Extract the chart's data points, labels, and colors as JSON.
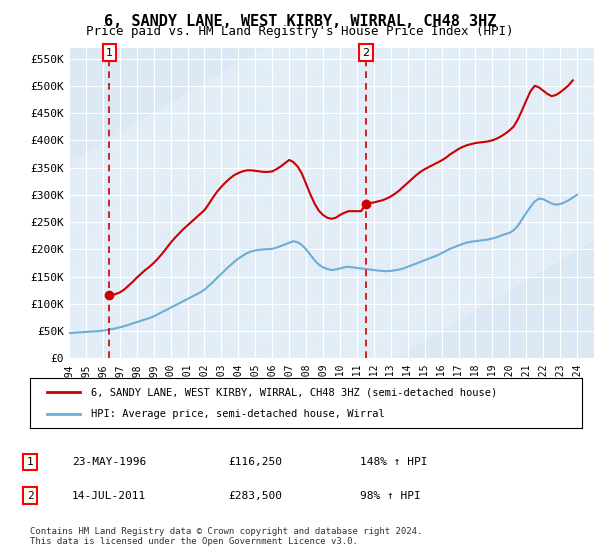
{
  "title": "6, SANDY LANE, WEST KIRBY, WIRRAL, CH48 3HZ",
  "subtitle": "Price paid vs. HM Land Registry's House Price Index (HPI)",
  "ylim": [
    0,
    570000
  ],
  "yticks": [
    0,
    50000,
    100000,
    150000,
    200000,
    250000,
    300000,
    350000,
    400000,
    450000,
    500000,
    550000
  ],
  "ytick_labels": [
    "£0",
    "£50K",
    "£100K",
    "£150K",
    "£200K",
    "£250K",
    "£300K",
    "£350K",
    "£400K",
    "£450K",
    "£500K",
    "£550K"
  ],
  "xlim_start": 1994.0,
  "xlim_end": 2025.0,
  "xticks": [
    1994,
    1995,
    1996,
    1997,
    1998,
    1999,
    2000,
    2001,
    2002,
    2003,
    2004,
    2005,
    2006,
    2007,
    2008,
    2009,
    2010,
    2011,
    2012,
    2013,
    2014,
    2015,
    2016,
    2017,
    2018,
    2019,
    2020,
    2021,
    2022,
    2023,
    2024
  ],
  "sale1_x": 1996.388,
  "sale1_y": 116250,
  "sale1_label": "1",
  "sale2_x": 2011.536,
  "sale2_y": 283500,
  "sale2_label": "2",
  "hpi_color": "#6baed6",
  "price_color": "#cc0000",
  "dashed_color": "#cc0000",
  "bg_color": "#dce9f5",
  "legend_address": "6, SANDY LANE, WEST KIRBY, WIRRAL, CH48 3HZ (semi-detached house)",
  "legend_hpi": "HPI: Average price, semi-detached house, Wirral",
  "table_row1": [
    "1",
    "23-MAY-1996",
    "£116,250",
    "148% ↑ HPI"
  ],
  "table_row2": [
    "2",
    "14-JUL-2011",
    "£283,500",
    "98% ↑ HPI"
  ],
  "footer": "Contains HM Land Registry data © Crown copyright and database right 2024.\nThis data is licensed under the Open Government Licence v3.0.",
  "hpi_data_x": [
    1994.0,
    1994.25,
    1994.5,
    1994.75,
    1995.0,
    1995.25,
    1995.5,
    1995.75,
    1996.0,
    1996.25,
    1996.5,
    1996.75,
    1997.0,
    1997.25,
    1997.5,
    1997.75,
    1998.0,
    1998.25,
    1998.5,
    1998.75,
    1999.0,
    1999.25,
    1999.5,
    1999.75,
    2000.0,
    2000.25,
    2000.5,
    2000.75,
    2001.0,
    2001.25,
    2001.5,
    2001.75,
    2002.0,
    2002.25,
    2002.5,
    2002.75,
    2003.0,
    2003.25,
    2003.5,
    2003.75,
    2004.0,
    2004.25,
    2004.5,
    2004.75,
    2005.0,
    2005.25,
    2005.5,
    2005.75,
    2006.0,
    2006.25,
    2006.5,
    2006.75,
    2007.0,
    2007.25,
    2007.5,
    2007.75,
    2008.0,
    2008.25,
    2008.5,
    2008.75,
    2009.0,
    2009.25,
    2009.5,
    2009.75,
    2010.0,
    2010.25,
    2010.5,
    2010.75,
    2011.0,
    2011.25,
    2011.5,
    2011.75,
    2012.0,
    2012.25,
    2012.5,
    2012.75,
    2013.0,
    2013.25,
    2013.5,
    2013.75,
    2014.0,
    2014.25,
    2014.5,
    2014.75,
    2015.0,
    2015.25,
    2015.5,
    2015.75,
    2016.0,
    2016.25,
    2016.5,
    2016.75,
    2017.0,
    2017.25,
    2017.5,
    2017.75,
    2018.0,
    2018.25,
    2018.5,
    2018.75,
    2019.0,
    2019.25,
    2019.5,
    2019.75,
    2020.0,
    2020.25,
    2020.5,
    2020.75,
    2021.0,
    2021.25,
    2021.5,
    2021.75,
    2022.0,
    2022.25,
    2022.5,
    2022.75,
    2023.0,
    2023.25,
    2023.5,
    2023.75,
    2024.0
  ],
  "hpi_data_y": [
    46500,
    47000,
    47500,
    48000,
    48500,
    49000,
    49500,
    50000,
    51000,
    52000,
    53500,
    55000,
    57000,
    59000,
    61500,
    64000,
    66500,
    69000,
    71500,
    74000,
    77000,
    81000,
    85000,
    89000,
    93000,
    97000,
    101000,
    105000,
    109000,
    113000,
    117000,
    121000,
    126000,
    133000,
    140000,
    148000,
    155000,
    163000,
    170000,
    177000,
    183000,
    188000,
    193000,
    196000,
    198000,
    199000,
    200000,
    200500,
    201000,
    203000,
    206000,
    209000,
    212000,
    215000,
    213000,
    208000,
    200000,
    190000,
    180000,
    172000,
    167000,
    164000,
    162000,
    163000,
    165000,
    167000,
    168000,
    167000,
    166000,
    165000,
    164000,
    163000,
    162000,
    161000,
    160500,
    160000,
    160500,
    161500,
    163000,
    165000,
    168000,
    171000,
    174000,
    177000,
    180000,
    183000,
    186000,
    189000,
    193000,
    197000,
    201000,
    204000,
    207000,
    210000,
    212500,
    214000,
    215000,
    216000,
    217000,
    218000,
    220000,
    222000,
    225000,
    228000,
    230000,
    235000,
    243000,
    255000,
    267000,
    278000,
    288000,
    293000,
    292000,
    288000,
    284000,
    282000,
    283000,
    286000,
    290000,
    295000,
    300000
  ],
  "price_data_x": [
    1994.0,
    1994.25,
    1994.5,
    1994.75,
    1995.0,
    1995.25,
    1995.5,
    1995.75,
    1996.0,
    1996.25,
    1996.388,
    1996.5,
    1996.75,
    1997.0,
    1997.25,
    1997.5,
    1997.75,
    1998.0,
    1998.25,
    1998.5,
    1998.75,
    1999.0,
    1999.25,
    1999.5,
    1999.75,
    2000.0,
    2000.25,
    2000.5,
    2000.75,
    2001.0,
    2001.25,
    2001.5,
    2001.75,
    2002.0,
    2002.25,
    2002.5,
    2002.75,
    2003.0,
    2003.25,
    2003.5,
    2003.75,
    2004.0,
    2004.25,
    2004.5,
    2004.75,
    2005.0,
    2005.25,
    2005.5,
    2005.75,
    2006.0,
    2006.25,
    2006.5,
    2006.75,
    2007.0,
    2007.25,
    2007.5,
    2007.75,
    2008.0,
    2008.25,
    2008.5,
    2008.75,
    2009.0,
    2009.25,
    2009.5,
    2009.75,
    2010.0,
    2010.25,
    2010.5,
    2010.75,
    2011.0,
    2011.25,
    2011.536,
    2011.75,
    2012.0,
    2012.25,
    2012.5,
    2012.75,
    2013.0,
    2013.25,
    2013.5,
    2013.75,
    2014.0,
    2014.25,
    2014.5,
    2014.75,
    2015.0,
    2015.25,
    2015.5,
    2015.75,
    2016.0,
    2016.25,
    2016.5,
    2016.75,
    2017.0,
    2017.25,
    2017.5,
    2017.75,
    2018.0,
    2018.25,
    2018.5,
    2018.75,
    2019.0,
    2019.25,
    2019.5,
    2019.75,
    2020.0,
    2020.25,
    2020.5,
    2020.75,
    2021.0,
    2021.25,
    2021.5,
    2021.75,
    2022.0,
    2022.25,
    2022.5,
    2022.75,
    2023.0,
    2023.25,
    2023.5,
    2023.75,
    2024.0
  ],
  "price_data_y": [
    null,
    null,
    null,
    null,
    null,
    null,
    null,
    null,
    null,
    null,
    116250,
    116250,
    118000,
    121000,
    126000,
    133000,
    140000,
    148000,
    155000,
    162000,
    168000,
    175000,
    183000,
    192000,
    202000,
    212000,
    221000,
    229000,
    237000,
    244000,
    251000,
    258000,
    265000,
    272000,
    283000,
    295000,
    306000,
    315000,
    323000,
    330000,
    336000,
    340000,
    343000,
    345000,
    345000,
    344000,
    343000,
    342000,
    342000,
    343000,
    347000,
    352000,
    358000,
    364000,
    360000,
    352000,
    339000,
    320000,
    301000,
    284000,
    271000,
    263000,
    258000,
    256000,
    258000,
    263000,
    267000,
    270000,
    270000,
    270000,
    270000,
    283500,
    285000,
    286000,
    288000,
    290000,
    293000,
    297000,
    302000,
    308000,
    315000,
    322000,
    329000,
    336000,
    342000,
    347000,
    351000,
    355000,
    359000,
    363000,
    368000,
    374000,
    379000,
    384000,
    388000,
    391000,
    393000,
    395000,
    396000,
    397000,
    398000,
    400000,
    403000,
    407000,
    412000,
    418000,
    425000,
    438000,
    455000,
    473000,
    490000,
    500000,
    497000,
    491000,
    485000,
    481000,
    483000,
    488000,
    494000,
    501000,
    510000
  ]
}
